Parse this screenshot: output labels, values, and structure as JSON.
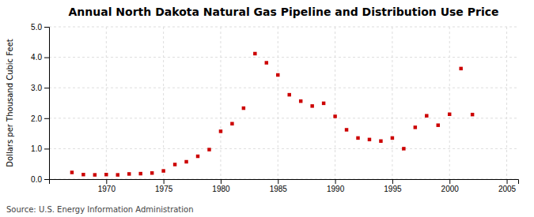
{
  "chart_data": {
    "type": "scatter",
    "title": "Annual North Dakota Natural Gas Pipeline and Distribution Use Price",
    "y_label": "Dollars per Thousand Cubic Feet",
    "annotations": [
      "Source: U.S. Energy Information Administration"
    ],
    "x": [
      1967,
      1968,
      1969,
      1970,
      1971,
      1972,
      1973,
      1974,
      1975,
      1976,
      1977,
      1978,
      1979,
      1980,
      1981,
      1982,
      1983,
      1984,
      1985,
      1986,
      1987,
      1988,
      1989,
      1990,
      1991,
      1992,
      1993,
      1994,
      1995,
      1996,
      1997,
      1998,
      1999,
      2000,
      2001,
      2002
    ],
    "values": [
      0.22,
      0.15,
      0.14,
      0.15,
      0.14,
      0.17,
      0.18,
      0.2,
      0.27,
      0.48,
      0.57,
      0.75,
      0.97,
      1.57,
      1.82,
      2.33,
      4.12,
      3.82,
      3.42,
      2.77,
      2.56,
      2.4,
      2.49,
      2.06,
      1.62,
      1.35,
      1.3,
      1.25,
      1.35,
      1.0,
      1.7,
      2.08,
      1.77,
      2.13,
      3.63,
      2.12
    ],
    "color": "#cc0000",
    "marker": "square",
    "xlim": [
      1965,
      2006
    ],
    "ylim": [
      0.0,
      5.0
    ],
    "xticks": [
      1970,
      1975,
      1980,
      1985,
      1990,
      1995,
      2000,
      2005
    ],
    "yticks": [
      {
        "value": 0.0,
        "label": "0.0"
      },
      {
        "value": 1.0,
        "label": "1.0"
      },
      {
        "value": 2.0,
        "label": "2.0"
      },
      {
        "value": 3.0,
        "label": "3.0"
      },
      {
        "value": 4.0,
        "label": "4.0"
      },
      {
        "value": 5.0,
        "label": "5.0"
      }
    ],
    "grid": true
  }
}
